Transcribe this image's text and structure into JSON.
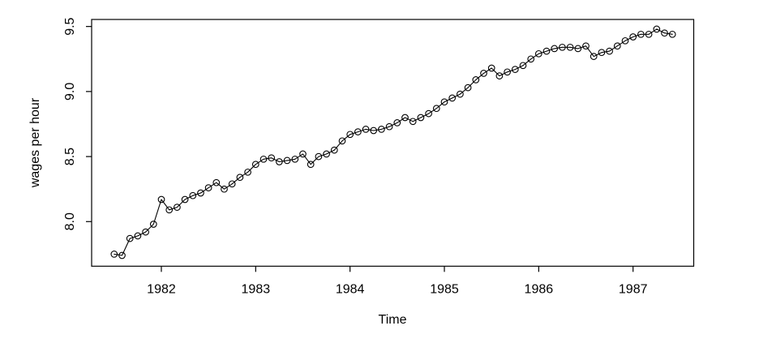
{
  "figure": {
    "background": "#ffffff",
    "foreground": "#000000"
  },
  "chart_data": {
    "type": "line",
    "title": "",
    "xlabel": "Time",
    "ylabel": "wages per hour",
    "marker": "open-circle",
    "line_color": "#000000",
    "grid": false,
    "legend": false,
    "x_start": 1981.5,
    "frequency": 12,
    "x_ticks": [
      1982,
      1983,
      1984,
      1985,
      1986,
      1987
    ],
    "x_tick_labels": [
      "1982",
      "1983",
      "1984",
      "1985",
      "1986",
      "1987"
    ],
    "y_ticks": [
      8.0,
      8.5,
      9.0,
      9.5
    ],
    "y_tick_labels": [
      "8.0",
      "8.5",
      "9.0",
      "9.5"
    ],
    "x_range": [
      1981.261,
      1987.643
    ],
    "y_range": [
      7.657,
      9.554
    ],
    "series": [
      {
        "name": "wages per hour",
        "values": [
          7.75,
          7.74,
          7.87,
          7.89,
          7.92,
          7.98,
          8.17,
          8.09,
          8.11,
          8.17,
          8.2,
          8.22,
          8.26,
          8.3,
          8.25,
          8.29,
          8.34,
          8.38,
          8.44,
          8.48,
          8.49,
          8.46,
          8.47,
          8.48,
          8.52,
          8.44,
          8.5,
          8.52,
          8.55,
          8.62,
          8.67,
          8.69,
          8.71,
          8.7,
          8.71,
          8.73,
          8.76,
          8.8,
          8.77,
          8.8,
          8.83,
          8.87,
          8.92,
          8.95,
          8.98,
          9.03,
          9.09,
          9.14,
          9.18,
          9.12,
          9.15,
          9.17,
          9.2,
          9.25,
          9.29,
          9.31,
          9.33,
          9.34,
          9.34,
          9.33,
          9.35,
          9.27,
          9.3,
          9.31,
          9.35,
          9.39,
          9.42,
          9.44,
          9.44,
          9.48,
          9.45,
          9.44
        ]
      }
    ]
  }
}
